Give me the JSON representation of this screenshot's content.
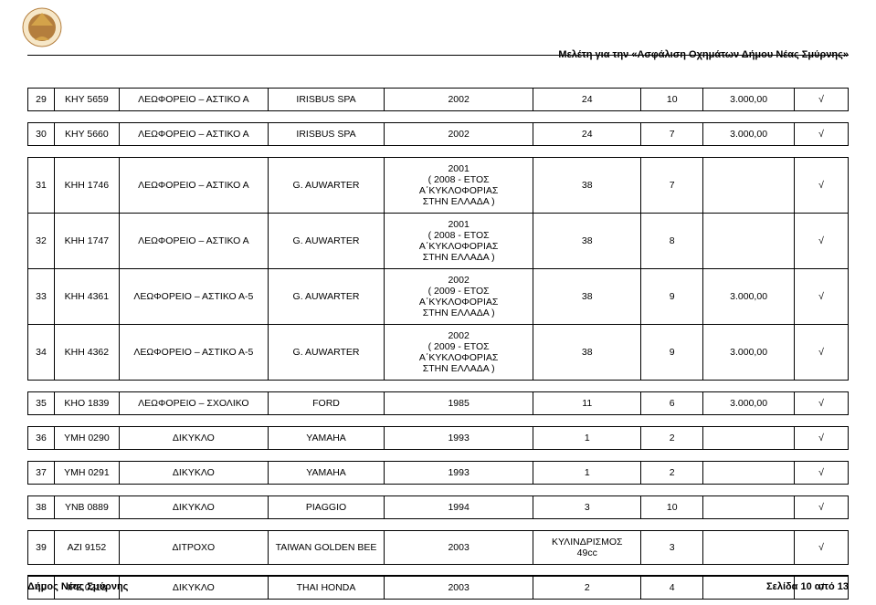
{
  "header": {
    "title": "Μελέτη για την «Ασφάλιση Οχημάτων Δήμου Νέας Σμύρνης»"
  },
  "logo": {
    "outer_fill": "#f6e7c8",
    "inner_fill": "#b47e3d",
    "gold": "#d4a34a"
  },
  "groups": [
    {
      "rows": [
        {
          "idx": "29",
          "plate": "ΚΗΥ 5659",
          "type": "ΛΕΩΦΟΡΕΙΟ – ΑΣΤΙΚΟ Α",
          "make": "IRISBUS SPA",
          "year": "2002",
          "hp": "24",
          "seats": "10",
          "price": "3.000,00",
          "chk": "√"
        }
      ]
    },
    {
      "rows": [
        {
          "idx": "30",
          "plate": "ΚΗΥ 5660",
          "type": "ΛΕΩΦΟΡΕΙΟ – ΑΣΤΙΚΟ Α",
          "make": "IRISBUS SPA",
          "year": "2002",
          "hp": "24",
          "seats": "7",
          "price": "3.000,00",
          "chk": "√"
        }
      ]
    },
    {
      "rows": [
        {
          "idx": "31",
          "plate": "ΚΗΗ 1746",
          "type": "ΛΕΩΦΟΡΕΙΟ – ΑΣΤΙΚΟ Α",
          "make": "G. AUWARTER",
          "year": "2001\n( 2008 - ΕΤΟΣ Α΄ΚΥΚΛΟΦΟΡΙΑΣ\nΣΤΗΝ ΕΛΛΑΔΑ )",
          "hp": "38",
          "seats": "7",
          "price": "",
          "chk": "√"
        },
        {
          "idx": "32",
          "plate": "ΚΗΗ 1747",
          "type": "ΛΕΩΦΟΡΕΙΟ – ΑΣΤΙΚΟ Α",
          "make": "G. AUWARTER",
          "year": "2001\n( 2008 - ΕΤΟΣ Α΄ΚΥΚΛΟΦΟΡΙΑΣ\nΣΤΗΝ ΕΛΛΑΔΑ )",
          "hp": "38",
          "seats": "8",
          "price": "",
          "chk": "√"
        },
        {
          "idx": "33",
          "plate": "ΚΗΗ 4361",
          "type": "ΛΕΩΦΟΡΕΙΟ – ΑΣΤΙΚΟ Α-5",
          "make": "G. AUWARTER",
          "year": "2002\n( 2009 - ΕΤΟΣ Α΄ΚΥΚΛΟΦΟΡΙΑΣ\nΣΤΗΝ ΕΛΛΑΔΑ )",
          "hp": "38",
          "seats": "9",
          "price": "3.000,00",
          "chk": "√"
        },
        {
          "idx": "34",
          "plate": "ΚΗΗ 4362",
          "type": "ΛΕΩΦΟΡΕΙΟ – ΑΣΤΙΚΟ Α-5",
          "make": "G. AUWARTER",
          "year": "2002\n( 2009 - ΕΤΟΣ Α΄ΚΥΚΛΟΦΟΡΙΑΣ\nΣΤΗΝ ΕΛΛΑΔΑ )",
          "hp": "38",
          "seats": "9",
          "price": "3.000,00",
          "chk": "√"
        }
      ]
    },
    {
      "rows": [
        {
          "idx": "35",
          "plate": "ΚΗΟ 1839",
          "type": "ΛΕΩΦΟΡΕΙΟ – ΣΧΟΛΙΚΟ",
          "make": "FORD",
          "year": "1985",
          "hp": "11",
          "seats": "6",
          "price": "3.000,00",
          "chk": "√"
        }
      ]
    },
    {
      "rows": [
        {
          "idx": "36",
          "plate": "ΥΜΗ 0290",
          "type": "ΔΙΚΥΚΛΟ",
          "make": "YAMAHA",
          "year": "1993",
          "hp": "1",
          "seats": "2",
          "price": "",
          "chk": "√"
        }
      ]
    },
    {
      "rows": [
        {
          "idx": "37",
          "plate": "ΥΜΗ 0291",
          "type": "ΔΙΚΥΚΛΟ",
          "make": "YAMAHA",
          "year": "1993",
          "hp": "1",
          "seats": "2",
          "price": "",
          "chk": "√"
        }
      ]
    },
    {
      "rows": [
        {
          "idx": "38",
          "plate": "ΥΝΒ 0889",
          "type": "ΔΙΚΥΚΛΟ",
          "make": "PIAGGIO",
          "year": "1994",
          "hp": "3",
          "seats": "10",
          "price": "",
          "chk": "√"
        }
      ]
    },
    {
      "rows": [
        {
          "idx": "39",
          "plate": "ΑΖΙ 9152",
          "type": "ΔΙΤΡΟΧΟ",
          "make": "TAIWAN GOLDEN BEE",
          "year": "2003",
          "hp": "ΚΥΛΙΝΔΡΙΣΜΟΣ\n49cc",
          "seats": "3",
          "price": "",
          "chk": "√"
        }
      ]
    },
    {
      "rows": [
        {
          "idx": "40",
          "plate": "ΙΡΖ 0218",
          "type": "ΔΙΚΥΚΛΟ",
          "make": "THAI HONDA",
          "year": "2003",
          "hp": "2",
          "seats": "4",
          "price": "",
          "chk": "√"
        }
      ]
    }
  ],
  "footer": {
    "left": "Δήμος Νέας Σμύρνης",
    "right": "Σελίδα 10 από 13"
  }
}
